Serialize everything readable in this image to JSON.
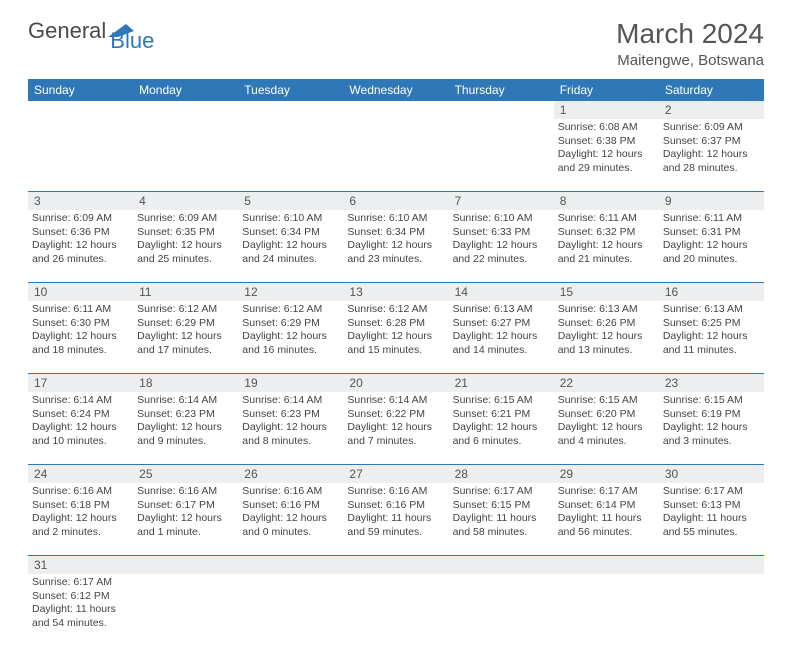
{
  "brand": {
    "part1": "General",
    "part2": "Blue"
  },
  "title": "March 2024",
  "location": "Maitengwe, Botswana",
  "colors": {
    "header_bg": "#2f78b8",
    "daynum_bg": "#eceeef",
    "rule": "#2f78b8",
    "text": "#444444",
    "title": "#555555"
  },
  "weekdays": [
    "Sunday",
    "Monday",
    "Tuesday",
    "Wednesday",
    "Thursday",
    "Friday",
    "Saturday"
  ],
  "weeks": [
    {
      "nums": [
        "",
        "",
        "",
        "",
        "",
        "1",
        "2"
      ],
      "cells": [
        [],
        [],
        [],
        [],
        [],
        [
          "Sunrise: 6:08 AM",
          "Sunset: 6:38 PM",
          "Daylight: 12 hours",
          "and 29 minutes."
        ],
        [
          "Sunrise: 6:09 AM",
          "Sunset: 6:37 PM",
          "Daylight: 12 hours",
          "and 28 minutes."
        ]
      ]
    },
    {
      "nums": [
        "3",
        "4",
        "5",
        "6",
        "7",
        "8",
        "9"
      ],
      "cells": [
        [
          "Sunrise: 6:09 AM",
          "Sunset: 6:36 PM",
          "Daylight: 12 hours",
          "and 26 minutes."
        ],
        [
          "Sunrise: 6:09 AM",
          "Sunset: 6:35 PM",
          "Daylight: 12 hours",
          "and 25 minutes."
        ],
        [
          "Sunrise: 6:10 AM",
          "Sunset: 6:34 PM",
          "Daylight: 12 hours",
          "and 24 minutes."
        ],
        [
          "Sunrise: 6:10 AM",
          "Sunset: 6:34 PM",
          "Daylight: 12 hours",
          "and 23 minutes."
        ],
        [
          "Sunrise: 6:10 AM",
          "Sunset: 6:33 PM",
          "Daylight: 12 hours",
          "and 22 minutes."
        ],
        [
          "Sunrise: 6:11 AM",
          "Sunset: 6:32 PM",
          "Daylight: 12 hours",
          "and 21 minutes."
        ],
        [
          "Sunrise: 6:11 AM",
          "Sunset: 6:31 PM",
          "Daylight: 12 hours",
          "and 20 minutes."
        ]
      ]
    },
    {
      "nums": [
        "10",
        "11",
        "12",
        "13",
        "14",
        "15",
        "16"
      ],
      "cells": [
        [
          "Sunrise: 6:11 AM",
          "Sunset: 6:30 PM",
          "Daylight: 12 hours",
          "and 18 minutes."
        ],
        [
          "Sunrise: 6:12 AM",
          "Sunset: 6:29 PM",
          "Daylight: 12 hours",
          "and 17 minutes."
        ],
        [
          "Sunrise: 6:12 AM",
          "Sunset: 6:29 PM",
          "Daylight: 12 hours",
          "and 16 minutes."
        ],
        [
          "Sunrise: 6:12 AM",
          "Sunset: 6:28 PM",
          "Daylight: 12 hours",
          "and 15 minutes."
        ],
        [
          "Sunrise: 6:13 AM",
          "Sunset: 6:27 PM",
          "Daylight: 12 hours",
          "and 14 minutes."
        ],
        [
          "Sunrise: 6:13 AM",
          "Sunset: 6:26 PM",
          "Daylight: 12 hours",
          "and 13 minutes."
        ],
        [
          "Sunrise: 6:13 AM",
          "Sunset: 6:25 PM",
          "Daylight: 12 hours",
          "and 11 minutes."
        ]
      ]
    },
    {
      "nums": [
        "17",
        "18",
        "19",
        "20",
        "21",
        "22",
        "23"
      ],
      "cells": [
        [
          "Sunrise: 6:14 AM",
          "Sunset: 6:24 PM",
          "Daylight: 12 hours",
          "and 10 minutes."
        ],
        [
          "Sunrise: 6:14 AM",
          "Sunset: 6:23 PM",
          "Daylight: 12 hours",
          "and 9 minutes."
        ],
        [
          "Sunrise: 6:14 AM",
          "Sunset: 6:23 PM",
          "Daylight: 12 hours",
          "and 8 minutes."
        ],
        [
          "Sunrise: 6:14 AM",
          "Sunset: 6:22 PM",
          "Daylight: 12 hours",
          "and 7 minutes."
        ],
        [
          "Sunrise: 6:15 AM",
          "Sunset: 6:21 PM",
          "Daylight: 12 hours",
          "and 6 minutes."
        ],
        [
          "Sunrise: 6:15 AM",
          "Sunset: 6:20 PM",
          "Daylight: 12 hours",
          "and 4 minutes."
        ],
        [
          "Sunrise: 6:15 AM",
          "Sunset: 6:19 PM",
          "Daylight: 12 hours",
          "and 3 minutes."
        ]
      ]
    },
    {
      "nums": [
        "24",
        "25",
        "26",
        "27",
        "28",
        "29",
        "30"
      ],
      "cells": [
        [
          "Sunrise: 6:16 AM",
          "Sunset: 6:18 PM",
          "Daylight: 12 hours",
          "and 2 minutes."
        ],
        [
          "Sunrise: 6:16 AM",
          "Sunset: 6:17 PM",
          "Daylight: 12 hours",
          "and 1 minute."
        ],
        [
          "Sunrise: 6:16 AM",
          "Sunset: 6:16 PM",
          "Daylight: 12 hours",
          "and 0 minutes."
        ],
        [
          "Sunrise: 6:16 AM",
          "Sunset: 6:16 PM",
          "Daylight: 11 hours",
          "and 59 minutes."
        ],
        [
          "Sunrise: 6:17 AM",
          "Sunset: 6:15 PM",
          "Daylight: 11 hours",
          "and 58 minutes."
        ],
        [
          "Sunrise: 6:17 AM",
          "Sunset: 6:14 PM",
          "Daylight: 11 hours",
          "and 56 minutes."
        ],
        [
          "Sunrise: 6:17 AM",
          "Sunset: 6:13 PM",
          "Daylight: 11 hours",
          "and 55 minutes."
        ]
      ]
    },
    {
      "nums": [
        "31",
        "",
        "",
        "",
        "",
        "",
        ""
      ],
      "cells": [
        [
          "Sunrise: 6:17 AM",
          "Sunset: 6:12 PM",
          "Daylight: 11 hours",
          "and 54 minutes."
        ],
        [],
        [],
        [],
        [],
        [],
        []
      ]
    }
  ]
}
